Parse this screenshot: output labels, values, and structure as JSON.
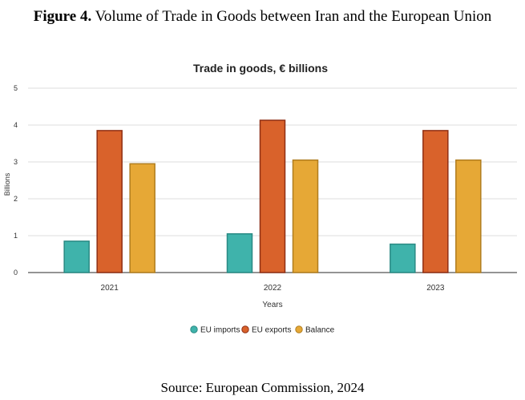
{
  "figure": {
    "label": "Figure 4.",
    "title": "Volume of Trade in Goods between Iran and the European Union",
    "source": "Source: European Commission, 2024"
  },
  "chart_data": {
    "type": "bar",
    "title": "Trade in goods, € billions",
    "xlabel": "Years",
    "ylabel": "Billions",
    "ylim": [
      0,
      5
    ],
    "yticks": [
      "0",
      "1",
      "2",
      "3",
      "4",
      "5"
    ],
    "categories": [
      "2021",
      "2022",
      "2023"
    ],
    "grid": true,
    "legend_position": "bottom",
    "series": [
      {
        "name": "EU imports",
        "color": "#3fb3ab",
        "stroke": "#2a8a84",
        "values": [
          0.85,
          1.05,
          0.77
        ]
      },
      {
        "name": "EU exports",
        "color": "#d9622b",
        "stroke": "#8f2f14",
        "values": [
          3.85,
          4.13,
          3.85
        ]
      },
      {
        "name": "Balance",
        "color": "#e6a836",
        "stroke": "#b07d1f",
        "values": [
          2.95,
          3.05,
          3.05
        ]
      }
    ]
  }
}
